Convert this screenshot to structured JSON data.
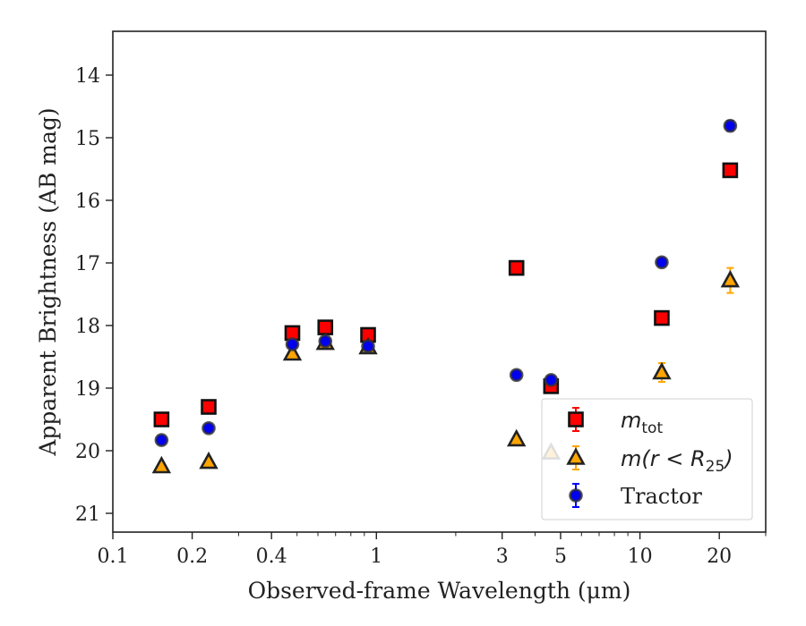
{
  "chart_data": {
    "type": "scatter",
    "xlabel": "Observed-frame Wavelength (μm)",
    "ylabel": "Apparent Brightness (AB mag)",
    "xscale": "log",
    "xlim": [
      0.1,
      30
    ],
    "ylim": [
      21.3,
      13.3
    ],
    "y_inverted": true,
    "x_ticks": [
      {
        "value": 0.1,
        "label": "0.1"
      },
      {
        "value": 0.2,
        "label": "0.2"
      },
      {
        "value": 0.4,
        "label": "0.4"
      },
      {
        "value": 1,
        "label": "1"
      },
      {
        "value": 3,
        "label": "3"
      },
      {
        "value": 5,
        "label": "5"
      },
      {
        "value": 10,
        "label": "10"
      },
      {
        "value": 20,
        "label": "20"
      }
    ],
    "x_minor_ticks": [
      0.3,
      0.5,
      0.6,
      0.7,
      0.8,
      0.9,
      2,
      4,
      6,
      7,
      8,
      9,
      30
    ],
    "y_ticks": [
      {
        "value": 14,
        "label": "14"
      },
      {
        "value": 15,
        "label": "15"
      },
      {
        "value": 16,
        "label": "16"
      },
      {
        "value": 17,
        "label": "17"
      },
      {
        "value": 18,
        "label": "18"
      },
      {
        "value": 19,
        "label": "19"
      },
      {
        "value": 20,
        "label": "20"
      },
      {
        "value": 21,
        "label": "21"
      }
    ],
    "grid": false,
    "legend_position": "lower-right",
    "series": [
      {
        "name": "m_tot",
        "legend_base": "m",
        "legend_sub": "tot",
        "marker": "square",
        "fill": "#ff0000",
        "edge": "#111111",
        "errcolor": "#ff0000",
        "x": [
          0.153,
          0.231,
          0.48,
          0.64,
          0.93,
          3.4,
          4.6,
          12.1,
          22.0
        ],
        "y": [
          19.5,
          19.3,
          18.12,
          18.03,
          18.15,
          17.08,
          18.97,
          17.88,
          15.52
        ],
        "yerr": [
          0.03,
          0.03,
          0.02,
          0.02,
          0.02,
          0.03,
          0.05,
          0.06,
          0.06
        ]
      },
      {
        "name": "m(r < R25)",
        "legend_base": "m(r < R",
        "legend_sub": "25",
        "legend_tail": ")",
        "marker": "triangle",
        "fill": "#ffa500",
        "edge": "#222222",
        "errcolor": "#ffa500",
        "x": [
          0.153,
          0.231,
          0.48,
          0.64,
          0.93,
          3.4,
          4.6,
          12.1,
          22.0
        ],
        "y": [
          20.25,
          20.18,
          18.45,
          18.28,
          18.35,
          19.82,
          20.03,
          18.75,
          17.28
        ],
        "yerr": [
          0.05,
          0.05,
          0.03,
          0.03,
          0.03,
          0.05,
          0.07,
          0.15,
          0.2
        ]
      },
      {
        "name": "Tractor",
        "marker": "circle",
        "fill": "#0000ee",
        "edge": "#333333",
        "errcolor": "#0000ff",
        "x": [
          0.153,
          0.231,
          0.48,
          0.64,
          0.93,
          3.4,
          4.6,
          12.1,
          22.0
        ],
        "y": [
          19.83,
          19.64,
          18.3,
          18.25,
          18.33,
          18.79,
          18.87,
          16.99,
          14.81
        ],
        "yerr": [
          0.03,
          0.03,
          0.02,
          0.02,
          0.02,
          0.03,
          0.05,
          0.06,
          0.08
        ]
      }
    ]
  }
}
